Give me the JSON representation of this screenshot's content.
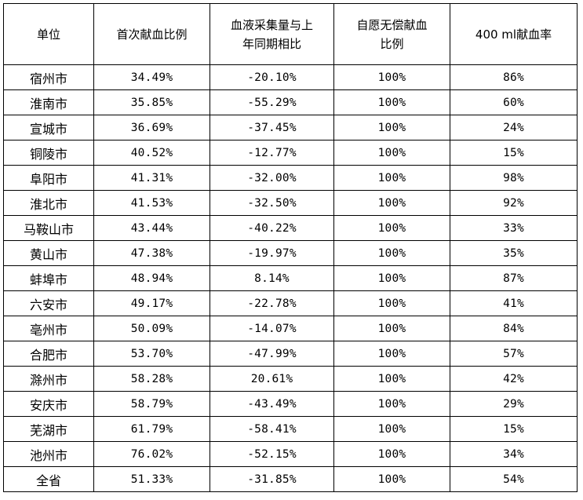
{
  "table": {
    "headers": [
      [
        "单位"
      ],
      [
        "首次献血比例"
      ],
      [
        "血液采集量与上",
        "年同期相比"
      ],
      [
        "自愿无偿献血",
        "比例"
      ],
      [
        "400 ml献血率"
      ]
    ],
    "rows": [
      [
        "宿州市",
        "34.49%",
        "-20.10%",
        "100%",
        "86%"
      ],
      [
        "淮南市",
        "35.85%",
        "-55.29%",
        "100%",
        "60%"
      ],
      [
        "宣城市",
        "36.69%",
        "-37.45%",
        "100%",
        "24%"
      ],
      [
        "铜陵市",
        "40.52%",
        "-12.77%",
        "100%",
        "15%"
      ],
      [
        "阜阳市",
        "41.31%",
        "-32.00%",
        "100%",
        "98%"
      ],
      [
        "淮北市",
        "41.53%",
        "-32.50%",
        "100%",
        "92%"
      ],
      [
        "马鞍山市",
        "43.44%",
        "-40.22%",
        "100%",
        "33%"
      ],
      [
        "黄山市",
        "47.38%",
        "-19.97%",
        "100%",
        "35%"
      ],
      [
        "蚌埠市",
        "48.94%",
        "8.14%",
        "100%",
        "87%"
      ],
      [
        "六安市",
        "49.17%",
        "-22.78%",
        "100%",
        "41%"
      ],
      [
        "亳州市",
        "50.09%",
        "-14.07%",
        "100%",
        "84%"
      ],
      [
        "合肥市",
        "53.70%",
        "-47.99%",
        "100%",
        "57%"
      ],
      [
        "滁州市",
        "58.28%",
        "20.61%",
        "100%",
        "42%"
      ],
      [
        "安庆市",
        "58.79%",
        "-43.49%",
        "100%",
        "29%"
      ],
      [
        "芜湖市",
        "61.79%",
        "-58.41%",
        "100%",
        "15%"
      ],
      [
        "池州市",
        "76.02%",
        "-52.15%",
        "100%",
        "34%"
      ],
      [
        "全省",
        "51.33%",
        "-31.85%",
        "100%",
        "54%"
      ]
    ]
  }
}
